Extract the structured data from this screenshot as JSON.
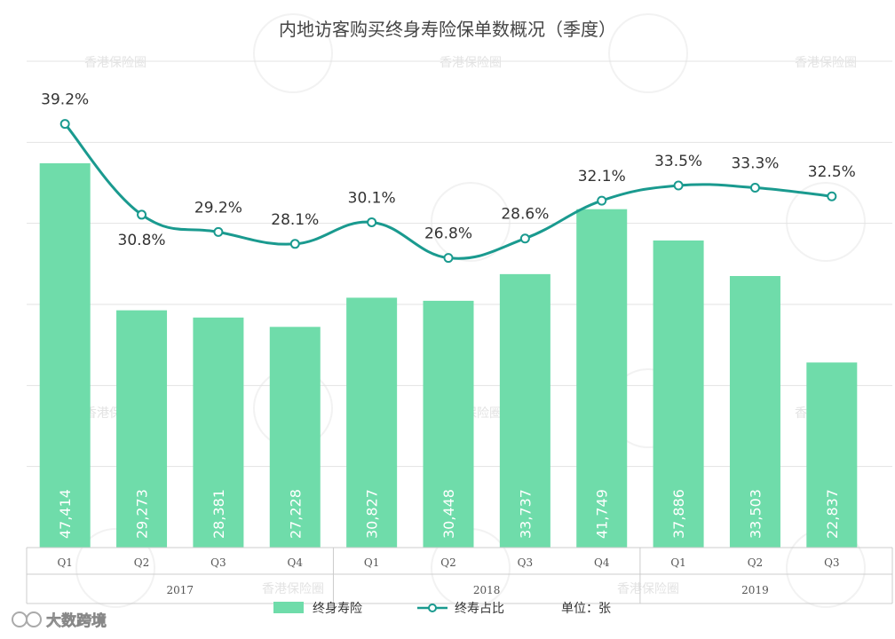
{
  "chart_data": {
    "type": "bar+line",
    "title": "内地访客购买终身寿险保单数概况（季度）",
    "categories": [
      "Q1",
      "Q2",
      "Q3",
      "Q4",
      "Q1",
      "Q2",
      "Q3",
      "Q4",
      "Q1",
      "Q2",
      "Q3"
    ],
    "years": [
      {
        "label": "2017",
        "quarters": 4
      },
      {
        "label": "2018",
        "quarters": 4
      },
      {
        "label": "2019",
        "quarters": 3
      }
    ],
    "series": [
      {
        "name": "终身寿险",
        "type": "bar",
        "values": [
          47414,
          29273,
          28381,
          27228,
          30827,
          30448,
          33737,
          41749,
          37886,
          33503,
          22837
        ],
        "labels": [
          "47,414",
          "29,273",
          "28,381",
          "27,228",
          "30,827",
          "30,448",
          "33,737",
          "41,749",
          "37,886",
          "33,503",
          "22,837"
        ]
      },
      {
        "name": "终寿占比",
        "type": "line",
        "values": [
          39.2,
          30.8,
          29.2,
          28.1,
          30.1,
          26.8,
          28.6,
          32.1,
          33.5,
          33.3,
          32.5
        ],
        "labels": [
          "39.2%",
          "30.8%",
          "29.2%",
          "28.1%",
          "30.1%",
          "26.8%",
          "28.6%",
          "32.1%",
          "33.5%",
          "33.3%",
          "32.5%"
        ]
      }
    ],
    "bar_ylim": [
      0,
      60000
    ],
    "line_ylim": [
      0,
      45
    ],
    "grid": true
  },
  "unit_label": "单位：张",
  "colors": {
    "bar": "#6fdcaa",
    "line": "#1a9a8f",
    "marker_fill": "#ffffff"
  },
  "watermarks": [
    "香港保险圈"
  ],
  "brand": "大数跨境"
}
